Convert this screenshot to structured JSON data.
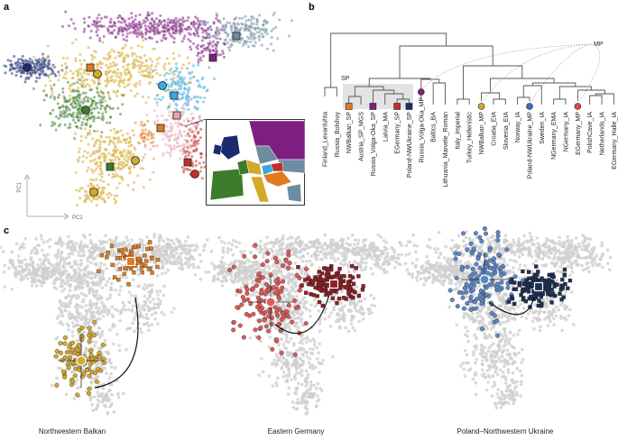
{
  "panels": {
    "a": "a",
    "b": "b",
    "c": "c"
  },
  "panel_a": {
    "axis_y": "PC1",
    "axis_x": "PC2"
  },
  "panel_b": {
    "sp_label": "SP",
    "mp_label": "MP",
    "leaves": [
      "Finland_Levanluhta",
      "Russia_Bolshoy",
      "NWBalkan_SP",
      "Austria_SP_MGS",
      "Russia_Volga-Oka_SP",
      "Latvia_MA",
      "EGermany_SP",
      "Poland-NWUkraine_SP",
      "Russia_Volga-Oka_MP",
      "Baltics_BA",
      "Lithuania_Marvele_Roman",
      "Italy_Imperial",
      "Turkey_Hellenistic",
      "NWBalkan_MP",
      "Croatia_EIA",
      "Slovenia_EIA",
      "Norway_IA",
      "Poland-NWUkraine_MP",
      "Sweden_IA",
      "NGermany_EMA",
      "NGermany_IA",
      "EGermany_MP",
      "PolishCave_IA",
      "Netherlands_IA",
      "EGermany_Halle_IA"
    ]
  },
  "panel_c": {
    "captions": [
      "Northwestern Balkan",
      "Eastern Germany",
      "Poland–Northwestern Ukraine"
    ]
  },
  "colors": {
    "navy": "#1c2a6e",
    "purple": "#7d1f80",
    "gold": "#d4a829",
    "green": "#3c7b2c",
    "orange": "#e07b1e",
    "slate": "#6d8ca0",
    "cyan": "#3aa9da",
    "red": "#c0302b",
    "pink": "#e8a4b4",
    "grey": "#d0d0d0",
    "sp_box": "#e3e3e3"
  }
}
